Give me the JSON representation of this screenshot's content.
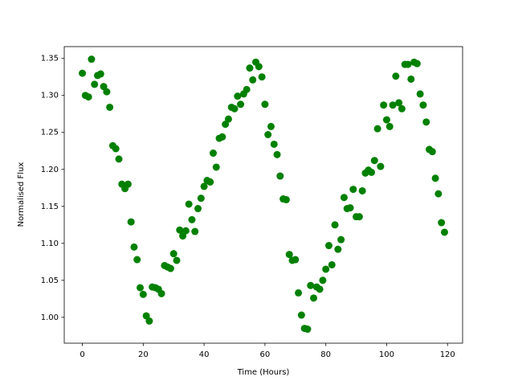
{
  "chart_data": {
    "type": "scatter",
    "xlabel": "Time (Hours)",
    "ylabel": "Normalised Flux",
    "x": [
      0,
      1,
      2,
      3,
      4,
      5,
      6,
      7,
      8,
      9,
      10,
      11,
      12,
      13,
      14,
      15,
      16,
      17,
      18,
      19,
      20,
      21,
      22,
      23,
      24,
      25,
      26,
      27,
      28,
      29,
      30,
      31,
      32,
      33,
      34,
      35,
      36,
      37,
      38,
      39,
      40,
      41,
      42,
      43,
      44,
      45,
      46,
      47,
      48,
      49,
      50,
      51,
      52,
      53,
      54,
      55,
      56,
      57,
      58,
      59,
      60,
      61,
      62,
      63,
      64,
      65,
      66,
      67,
      68,
      69,
      70,
      71,
      72,
      73,
      74,
      75,
      76,
      77,
      78,
      79,
      80,
      81,
      82,
      83,
      84,
      85,
      86,
      87,
      88,
      89,
      90,
      91,
      92,
      93,
      94,
      95,
      96,
      97,
      98,
      99,
      100,
      101,
      102,
      103,
      104,
      105,
      106,
      107,
      108,
      109,
      110,
      111,
      112,
      113,
      114,
      115,
      116,
      117,
      118,
      119
    ],
    "series": [
      {
        "color": "#008000",
        "values": [
          1.33,
          1.3,
          1.298,
          1.349,
          1.315,
          1.327,
          1.329,
          1.312,
          1.305,
          1.284,
          1.232,
          1.228,
          1.214,
          1.18,
          1.174,
          1.18,
          1.129,
          1.095,
          1.078,
          1.04,
          1.031,
          1.002,
          0.995,
          1.041,
          1.04,
          1.038,
          1.032,
          1.07,
          1.068,
          1.066,
          1.086,
          1.077,
          1.118,
          1.11,
          1.117,
          1.153,
          1.132,
          1.116,
          1.147,
          1.161,
          1.177,
          1.185,
          1.183,
          1.222,
          1.203,
          1.242,
          1.244,
          1.261,
          1.268,
          1.284,
          1.282,
          1.299,
          1.288,
          1.302,
          1.308,
          1.337,
          1.321,
          1.345,
          1.339,
          1.325,
          1.288,
          1.247,
          1.258,
          1.234,
          1.22,
          1.191,
          1.16,
          1.159,
          1.085,
          1.077,
          1.078,
          1.033,
          1.003,
          0.985,
          0.984,
          1.043,
          1.026,
          1.041,
          1.038,
          1.05,
          1.065,
          1.097,
          1.071,
          1.125,
          1.092,
          1.105,
          1.162,
          1.147,
          1.148,
          1.173,
          1.136,
          1.136,
          1.171,
          1.195,
          1.199,
          1.196,
          1.212,
          1.255,
          1.204,
          1.287,
          1.267,
          1.258,
          1.287,
          1.326,
          1.29,
          1.282,
          1.342,
          1.342,
          1.322,
          1.345,
          1.343,
          1.302,
          1.287,
          1.264,
          1.227,
          1.224,
          1.188,
          1.167,
          1.128,
          1.115
        ]
      }
    ],
    "xlim": [
      -5.95,
      124.95
    ],
    "xticks": [
      0,
      20,
      40,
      60,
      80,
      100,
      120
    ],
    "ylim": [
      0.965,
      1.366
    ],
    "yticks": [
      {
        "value": 1.0,
        "label": "1.00"
      },
      1.05,
      {
        "value": 1.1,
        "label": "1.10"
      },
      1.15,
      {
        "value": 1.2,
        "label": "1.20"
      },
      1.25,
      {
        "value": 1.3,
        "label": "1.30"
      },
      1.35
    ]
  }
}
